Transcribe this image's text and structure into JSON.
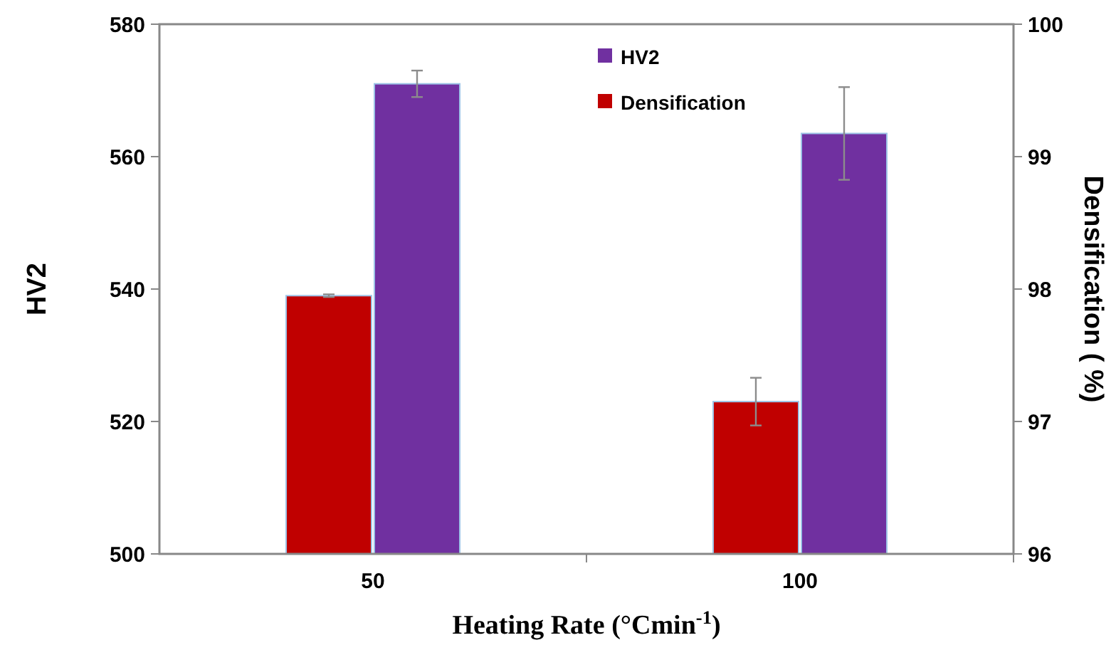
{
  "chart_data": {
    "type": "bar",
    "categories": [
      "50",
      "100"
    ],
    "xlabel": "Heating Rate (°Cmin$^{-1}$)",
    "ylabel": "HV2",
    "y2label": "Densification ( %)",
    "series": [
      {
        "name": "Densification",
        "color": "#c00000",
        "axis": "y2",
        "values": [
          97.95,
          97.15
        ],
        "errors": [
          0.01,
          0.18
        ]
      },
      {
        "name": "HV2",
        "color": "#7030a0",
        "values": [
          571,
          563.5
        ],
        "errors": [
          2,
          7
        ]
      }
    ],
    "ylim": [
      500,
      580
    ],
    "yticks": [
      500,
      520,
      540,
      560,
      580
    ],
    "y2lim": [
      96,
      100
    ],
    "y2ticks": [
      96,
      97,
      98,
      99,
      100
    ],
    "legend": "top",
    "grid": false
  }
}
